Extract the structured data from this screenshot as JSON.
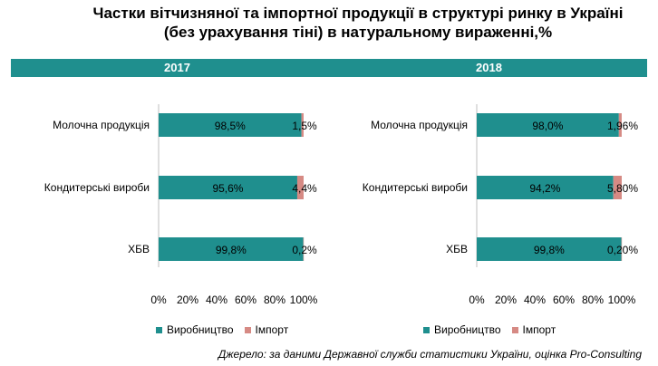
{
  "title_line1": "Частки вітчизняної та імпортної продукції в структурі ринку в Україні",
  "title_line2": "(без урахування тіні) в натуральному вираженні,%",
  "source": "Джерело: за даними Державної служби статистики України, оцінка Pro-Consulting",
  "colors": {
    "band": "#1f8f8e",
    "production": "#1f8f8e",
    "import": "#d68a84"
  },
  "legend": {
    "production": "Виробництво",
    "import": "Імпорт"
  },
  "chart_data": [
    {
      "type": "bar",
      "stacked": true,
      "orientation": "horizontal",
      "title": "2017",
      "categories": [
        "Молочна продукція",
        "Кондитерські вироби",
        "ХБВ"
      ],
      "series": [
        {
          "name": "Виробництво",
          "values": [
            98.5,
            95.6,
            99.8
          ],
          "labels": [
            "98,5%",
            "95,6%",
            "99,8%"
          ]
        },
        {
          "name": "Імпорт",
          "values": [
            1.5,
            4.4,
            0.2
          ],
          "labels": [
            "1,5%",
            "4,4%",
            "0,2%"
          ]
        }
      ],
      "xlim": [
        0,
        100
      ],
      "xticks": [
        "0%",
        "20%",
        "40%",
        "60%",
        "80%",
        "100%"
      ],
      "grid": false,
      "legend": "bottom"
    },
    {
      "type": "bar",
      "stacked": true,
      "orientation": "horizontal",
      "title": "2018",
      "categories": [
        "Молочна продукція",
        "Кондитерські вироби",
        "ХБВ"
      ],
      "series": [
        {
          "name": "Виробництво",
          "values": [
            98.0,
            94.2,
            99.8
          ],
          "labels": [
            "98,0%",
            "94,2%",
            "99,8%"
          ]
        },
        {
          "name": "Імпорт",
          "values": [
            1.96,
            5.8,
            0.2
          ],
          "labels": [
            "1,96%",
            "5,80%",
            "0,20%"
          ]
        }
      ],
      "xlim": [
        0,
        100
      ],
      "xticks": [
        "0%",
        "20%",
        "40%",
        "60%",
        "80%",
        "100%"
      ],
      "grid": false,
      "legend": "bottom"
    }
  ]
}
